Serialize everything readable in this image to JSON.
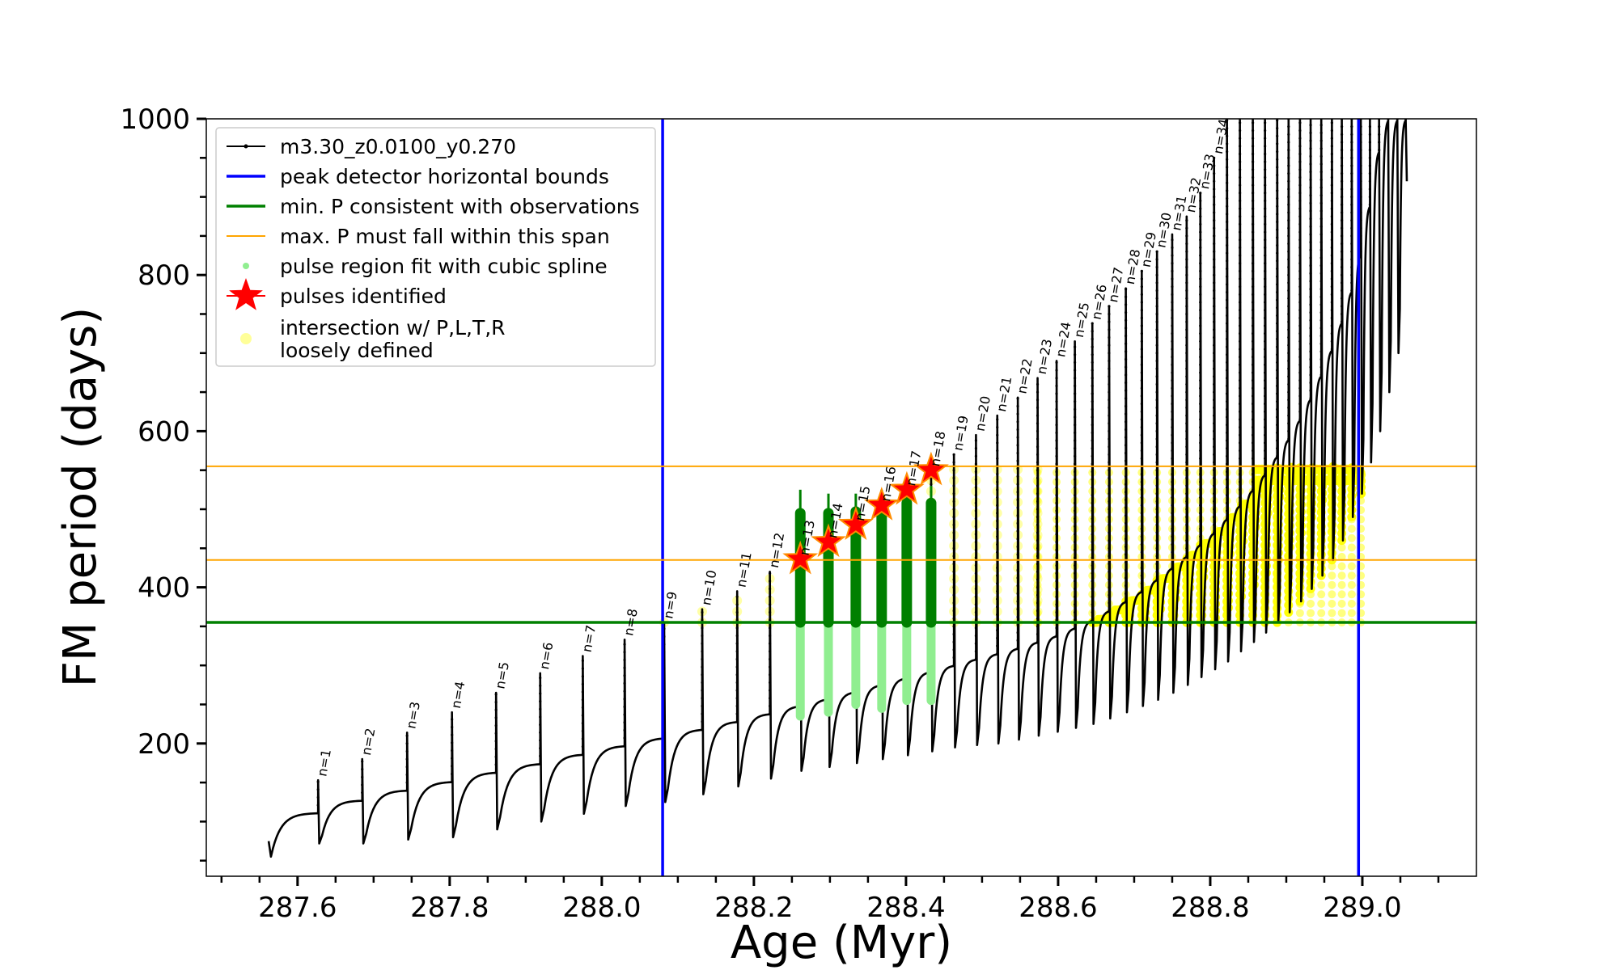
{
  "chart_data": {
    "type": "scatter",
    "xlabel": "Age (Myr)",
    "ylabel": "FM period (days)",
    "xlim": [
      287.48,
      289.15
    ],
    "ylim": [
      30,
      1000
    ],
    "x_ticks": [
      "287.6",
      "287.8",
      "288.0",
      "288.2",
      "288.4",
      "288.6",
      "288.8",
      "289.0"
    ],
    "x_tick_values": [
      287.6,
      287.8,
      288.0,
      288.2,
      288.4,
      288.6,
      288.8,
      289.0
    ],
    "y_ticks": [
      "200",
      "400",
      "600",
      "800",
      "1000"
    ],
    "y_tick_values": [
      200,
      400,
      600,
      800,
      1000
    ],
    "grid": false,
    "legend_position": "top-left",
    "colors": {
      "track": "#000000",
      "bounds": "#0000ff",
      "min_p": "#008000",
      "max_p_span": "#ffa500",
      "spline_fit": "#90ee90",
      "spline_dark": "#008000",
      "pulse_star": "#ff0000",
      "star_edge": "#ff8c00",
      "intersection": "#ffff00"
    },
    "vertical_lines": [
      288.08,
      288.995
    ],
    "min_period_line": 355,
    "max_period_span": [
      435,
      555
    ],
    "legend": [
      {
        "label": "m3.30_z0.0100_y0.270",
        "kind": "track"
      },
      {
        "label": "peak detector horizontal bounds",
        "kind": "bounds"
      },
      {
        "label": "min. P consistent with observations",
        "kind": "min_p"
      },
      {
        "label": "max. P must fall within this span",
        "kind": "max_p_span"
      },
      {
        "label": "pulse region fit with cubic spline",
        "kind": "spline_fit"
      },
      {
        "label": "pulses identified",
        "kind": "pulse_star"
      },
      {
        "label": "intersection w/ P,L,T,R",
        "label2": "loosely defined",
        "kind": "intersection"
      }
    ],
    "pulses": [
      {
        "n": "n=1",
        "age": 287.627,
        "peak": 153,
        "base": 111,
        "min": 72
      },
      {
        "n": "n=2",
        "age": 287.685,
        "peak": 180,
        "base": 127,
        "min": 72
      },
      {
        "n": "n=3",
        "age": 287.744,
        "peak": 214,
        "base": 140,
        "min": 77
      },
      {
        "n": "n=4",
        "age": 287.803,
        "peak": 240,
        "base": 151,
        "min": 80
      },
      {
        "n": "n=5",
        "age": 287.861,
        "peak": 265,
        "base": 163,
        "min": 90
      },
      {
        "n": "n=6",
        "age": 287.919,
        "peak": 290,
        "base": 174,
        "min": 100
      },
      {
        "n": "n=7",
        "age": 287.975,
        "peak": 312,
        "base": 186,
        "min": 110
      },
      {
        "n": "n=8",
        "age": 288.03,
        "peak": 333,
        "base": 197,
        "min": 120
      },
      {
        "n": "n=9",
        "age": 288.082,
        "peak": 355,
        "base": 207,
        "min": 125
      },
      {
        "n": "n=10",
        "age": 288.132,
        "peak": 372,
        "base": 218,
        "min": 135
      },
      {
        "n": "n=11",
        "age": 288.178,
        "peak": 395,
        "base": 228,
        "min": 145
      },
      {
        "n": "n=12",
        "age": 288.221,
        "peak": 420,
        "base": 238,
        "min": 155
      },
      {
        "n": "n=13",
        "age": 288.261,
        "peak": 436,
        "base": 248,
        "min": 165
      },
      {
        "n": "n=14",
        "age": 288.298,
        "peak": 458,
        "base": 257,
        "min": 170
      },
      {
        "n": "n=15",
        "age": 288.334,
        "peak": 480,
        "base": 266,
        "min": 175
      },
      {
        "n": "n=16",
        "age": 288.368,
        "peak": 505,
        "base": 275,
        "min": 180
      },
      {
        "n": "n=17",
        "age": 288.401,
        "peak": 525,
        "base": 284,
        "min": 185
      },
      {
        "n": "n=18",
        "age": 288.433,
        "peak": 550,
        "base": 292,
        "min": 190
      },
      {
        "n": "n=19",
        "age": 288.463,
        "peak": 570,
        "base": 300,
        "min": 195
      },
      {
        "n": "n=20",
        "age": 288.492,
        "peak": 595,
        "base": 308,
        "min": 198
      },
      {
        "n": "n=21",
        "age": 288.52,
        "peak": 620,
        "base": 315,
        "min": 200
      },
      {
        "n": "n=22",
        "age": 288.547,
        "peak": 643,
        "base": 322,
        "min": 205
      },
      {
        "n": "n=23",
        "age": 288.573,
        "peak": 668,
        "base": 330,
        "min": 210
      },
      {
        "n": "n=24",
        "age": 288.598,
        "peak": 690,
        "base": 338,
        "min": 215
      },
      {
        "n": "n=25",
        "age": 288.622,
        "peak": 715,
        "base": 348,
        "min": 220
      },
      {
        "n": "n=26",
        "age": 288.645,
        "peak": 738,
        "base": 358,
        "min": 225
      },
      {
        "n": "n=27",
        "age": 288.667,
        "peak": 760,
        "base": 370,
        "min": 232
      },
      {
        "n": "n=28",
        "age": 288.689,
        "peak": 783,
        "base": 382,
        "min": 240
      },
      {
        "n": "n=29",
        "age": 288.71,
        "peak": 805,
        "base": 395,
        "min": 248
      },
      {
        "n": "n=30",
        "age": 288.73,
        "peak": 830,
        "base": 410,
        "min": 256
      },
      {
        "n": "n=31",
        "age": 288.75,
        "peak": 852,
        "base": 425,
        "min": 265
      },
      {
        "n": "n=32",
        "age": 288.769,
        "peak": 875,
        "base": 440,
        "min": 275
      },
      {
        "n": "n=33",
        "age": 288.787,
        "peak": 905,
        "base": 455,
        "min": 285
      },
      {
        "n": "n=34",
        "age": 288.805,
        "peak": 950,
        "base": 470,
        "min": 295
      },
      {
        "n": "",
        "age": 288.822,
        "peak": 1000,
        "base": 488,
        "min": 305
      },
      {
        "n": "",
        "age": 288.839,
        "peak": 1000,
        "base": 505,
        "min": 318
      },
      {
        "n": "",
        "age": 288.856,
        "peak": 1000,
        "base": 525,
        "min": 330
      },
      {
        "n": "",
        "age": 288.872,
        "peak": 1000,
        "base": 545,
        "min": 342
      },
      {
        "n": "",
        "age": 288.888,
        "peak": 1000,
        "base": 568,
        "min": 355
      },
      {
        "n": "",
        "age": 288.903,
        "peak": 1000,
        "base": 590,
        "min": 368
      },
      {
        "n": "",
        "age": 288.918,
        "peak": 1000,
        "base": 615,
        "min": 382
      },
      {
        "n": "",
        "age": 288.932,
        "peak": 1000,
        "base": 642,
        "min": 398
      },
      {
        "n": "",
        "age": 288.946,
        "peak": 1000,
        "base": 672,
        "min": 415
      },
      {
        "n": "",
        "age": 288.96,
        "peak": 1000,
        "base": 705,
        "min": 435
      },
      {
        "n": "",
        "age": 288.973,
        "peak": 1000,
        "base": 740,
        "min": 460
      },
      {
        "n": "",
        "age": 288.986,
        "peak": 1000,
        "base": 780,
        "min": 490
      },
      {
        "n": "",
        "age": 288.998,
        "peak": 1000,
        "base": 830,
        "min": 520
      },
      {
        "n": "",
        "age": 289.01,
        "peak": 1000,
        "base": 890,
        "min": 560
      },
      {
        "n": "",
        "age": 289.022,
        "peak": 1000,
        "base": 960,
        "min": 600
      },
      {
        "n": "",
        "age": 289.034,
        "peak": 1000,
        "base": 1000,
        "min": 650
      },
      {
        "n": "",
        "age": 289.046,
        "peak": 1000,
        "base": 1000,
        "min": 700
      },
      {
        "n": "",
        "age": 289.057,
        "peak": 1000,
        "base": 1000,
        "min": 920
      }
    ],
    "track_start": {
      "age": 287.562,
      "value": 75
    },
    "pulses_identified": [
      {
        "n": "n=13",
        "age": 288.261,
        "period": 436
      },
      {
        "n": "n=14",
        "age": 288.298,
        "period": 458
      },
      {
        "n": "n=15",
        "age": 288.334,
        "period": 480
      },
      {
        "n": "n=16",
        "age": 288.368,
        "period": 505
      },
      {
        "n": "n=17",
        "age": 288.401,
        "period": 525
      },
      {
        "n": "n=18",
        "age": 288.433,
        "period": 550
      }
    ],
    "spline_regions": [
      {
        "age": 288.261,
        "low": 235,
        "dark_low": 355,
        "top": 495,
        "spike": 525
      },
      {
        "age": 288.298,
        "low": 240,
        "dark_low": 355,
        "top": 495,
        "spike": 520
      },
      {
        "age": 288.334,
        "low": 250,
        "dark_low": 355,
        "top": 497,
        "spike": 520
      },
      {
        "age": 288.368,
        "low": 245,
        "dark_low": 355,
        "top": 500,
        "spike": 525
      },
      {
        "age": 288.401,
        "low": 255,
        "dark_low": 355,
        "top": 508,
        "spike": 530
      },
      {
        "age": 288.433,
        "low": 255,
        "dark_low": 355,
        "top": 508,
        "spike": 530
      }
    ]
  }
}
